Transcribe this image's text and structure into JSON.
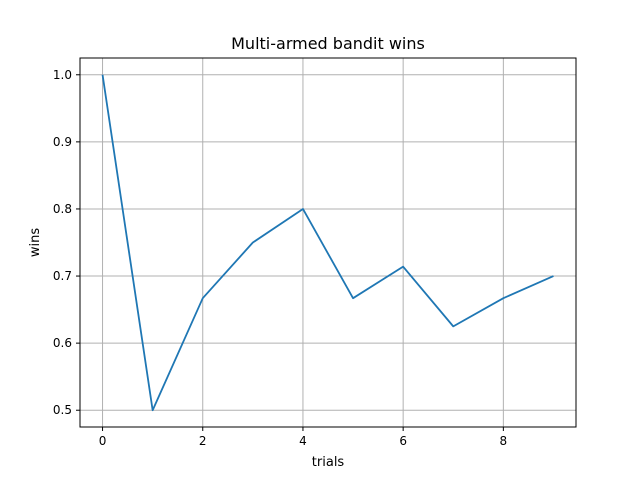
{
  "chart_data": {
    "type": "line",
    "title": "Multi-armed bandit wins",
    "xlabel": "trials",
    "ylabel": "wins",
    "x": [
      0,
      1,
      2,
      3,
      4,
      5,
      6,
      7,
      8,
      9
    ],
    "series": [
      {
        "values": [
          1.0,
          0.5,
          0.667,
          0.75,
          0.8,
          0.667,
          0.714,
          0.625,
          0.667,
          0.7
        ]
      }
    ],
    "xlim": [
      -0.45,
      9.45
    ],
    "ylim": [
      0.475,
      1.025
    ],
    "xticks": [
      0,
      2,
      4,
      6,
      8
    ],
    "xtick_labels": [
      "0",
      "2",
      "4",
      "6",
      "8"
    ],
    "yticks": [
      0.5,
      0.6,
      0.7,
      0.8,
      0.9,
      1.0
    ],
    "ytick_labels": [
      "0.5",
      "0.6",
      "0.7",
      "0.8",
      "0.9",
      "1.0"
    ],
    "grid": true,
    "line_color": "#1f77b4",
    "grid_color": "#b0b0b0"
  }
}
